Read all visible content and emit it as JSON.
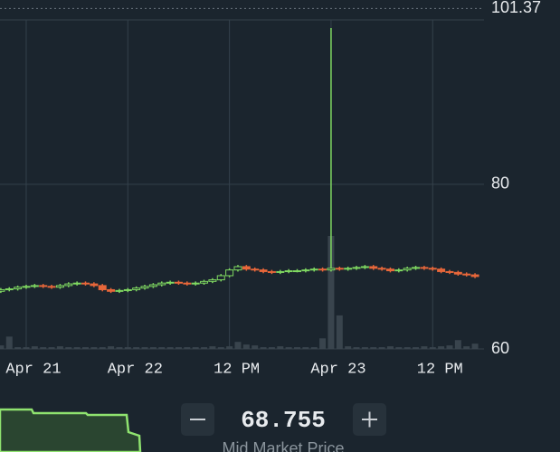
{
  "chart_data": {
    "type": "candlestick",
    "categories": [
      null,
      null,
      null,
      "Apr 21",
      null,
      null,
      null,
      null,
      null,
      null,
      null,
      null,
      null,
      null,
      null,
      "Apr 22",
      null,
      null,
      null,
      null,
      null,
      null,
      null,
      null,
      null,
      null,
      null,
      "12 PM",
      null,
      null,
      null,
      null,
      null,
      null,
      null,
      null,
      null,
      null,
      null,
      "Apr 23",
      null,
      null,
      null,
      null,
      null,
      null,
      null,
      null,
      null,
      null,
      null,
      "12 PM",
      null,
      null,
      null,
      null,
      null
    ],
    "open": [
      67.0,
      67.2,
      67.3,
      67.5,
      67.6,
      67.7,
      67.6,
      67.5,
      67.7,
      67.9,
      68.0,
      67.9,
      67.7,
      67.2,
      67.0,
      67.1,
      67.2,
      67.4,
      67.6,
      67.8,
      68.0,
      68.1,
      68.0,
      67.9,
      68.0,
      68.2,
      68.4,
      68.9,
      69.6,
      70.0,
      69.7,
      69.6,
      69.4,
      69.3,
      69.4,
      69.5,
      69.5,
      69.6,
      69.7,
      69.6,
      69.8,
      69.7,
      69.8,
      69.9,
      70.0,
      69.8,
      69.7,
      69.5,
      69.6,
      69.8,
      69.9,
      69.8,
      69.7,
      69.4,
      69.3,
      69.1,
      69.0
    ],
    "high": [
      67.4,
      67.5,
      67.7,
      67.8,
      67.9,
      67.9,
      67.8,
      67.9,
      68.1,
      68.2,
      68.2,
      68.1,
      67.9,
      67.4,
      67.3,
      67.4,
      67.6,
      67.8,
      68.0,
      68.2,
      68.3,
      68.3,
      68.2,
      68.2,
      68.4,
      68.6,
      69.1,
      69.8,
      70.2,
      70.2,
      69.9,
      69.8,
      69.6,
      69.6,
      69.7,
      69.7,
      69.8,
      69.9,
      69.9,
      99.0,
      70.0,
      70.0,
      70.1,
      70.2,
      70.2,
      70.0,
      69.9,
      69.8,
      70.0,
      70.1,
      70.1,
      70.0,
      69.9,
      69.6,
      69.5,
      69.3,
      69.2
    ],
    "low": [
      66.8,
      67.0,
      67.1,
      67.3,
      67.4,
      67.4,
      67.3,
      67.3,
      67.5,
      67.7,
      67.7,
      67.5,
      67.0,
      66.8,
      66.8,
      66.9,
      67.0,
      67.2,
      67.4,
      67.6,
      67.8,
      67.8,
      67.7,
      67.7,
      67.8,
      68.0,
      68.2,
      68.7,
      69.4,
      69.5,
      69.4,
      69.2,
      69.1,
      69.1,
      69.2,
      69.3,
      69.3,
      69.4,
      69.4,
      69.4,
      69.5,
      69.5,
      69.6,
      69.7,
      69.6,
      69.5,
      69.3,
      69.3,
      69.4,
      69.6,
      69.6,
      69.5,
      69.2,
      69.1,
      68.9,
      68.8,
      68.6
    ],
    "close": [
      67.2,
      67.3,
      67.5,
      67.6,
      67.7,
      67.6,
      67.5,
      67.7,
      67.9,
      68.0,
      67.9,
      67.7,
      67.2,
      67.0,
      67.1,
      67.2,
      67.4,
      67.6,
      67.8,
      68.0,
      68.1,
      68.0,
      67.9,
      68.0,
      68.2,
      68.4,
      68.9,
      69.6,
      70.0,
      69.7,
      69.6,
      69.4,
      69.3,
      69.4,
      69.5,
      69.5,
      69.6,
      69.7,
      69.6,
      69.8,
      69.7,
      69.8,
      69.9,
      70.0,
      69.8,
      69.7,
      69.5,
      69.6,
      69.8,
      69.9,
      69.8,
      69.7,
      69.4,
      69.3,
      69.1,
      69.0,
      68.8
    ],
    "volume": [
      4,
      14,
      2,
      2,
      3,
      2,
      2,
      3,
      2,
      2,
      2,
      2,
      2,
      3,
      2,
      2,
      2,
      2,
      2,
      2,
      2,
      2,
      2,
      2,
      2,
      3,
      2,
      3,
      8,
      5,
      4,
      2,
      2,
      3,
      2,
      2,
      2,
      2,
      12,
      128,
      38,
      3,
      2,
      2,
      2,
      2,
      3,
      2,
      2,
      2,
      3,
      2,
      3,
      4,
      10,
      3,
      6
    ],
    "up_color": "#7fd861",
    "down_color": "#e8673a",
    "volume_color": "#39444d",
    "ylim": [
      60,
      102.4
    ],
    "yticks": [
      60,
      80
    ],
    "price_marker": 101.37,
    "grid": true
  },
  "mid_market": {
    "price": "68.755",
    "label": "Mid Market Price"
  }
}
